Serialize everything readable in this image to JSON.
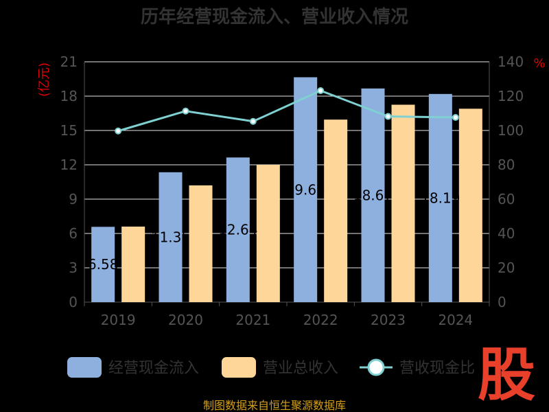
{
  "chart_data": {
    "type": "bar",
    "title": "历年经营现金流入、营业收入情况",
    "categories": [
      "2019",
      "2020",
      "2021",
      "2022",
      "2023",
      "2024"
    ],
    "series": [
      {
        "name": "经营现金流入",
        "type": "bar",
        "axis": "left",
        "color": "#8eb0df",
        "values": [
          6.58,
          11.35,
          12.64,
          19.65,
          18.67,
          18.19
        ]
      },
      {
        "name": "营业总收入",
        "type": "bar",
        "axis": "left",
        "color": "#ffd699",
        "values": [
          6.6,
          10.2,
          12.0,
          15.95,
          17.25,
          16.9
        ]
      },
      {
        "name": "营收现金比",
        "type": "line",
        "axis": "right",
        "color": "#7fd1d1",
        "values": [
          99.7,
          111.3,
          105.3,
          123.2,
          108.2,
          107.6
        ]
      }
    ],
    "data_labels": [
      "6.58",
      "11.35",
      "12.64",
      "19.65",
      "18.67",
      "18.19"
    ],
    "y_left": {
      "label": "(亿元)",
      "ylim": [
        0,
        21
      ],
      "ticks": [
        "0",
        "3",
        "6",
        "9",
        "12",
        "15",
        "18",
        "21"
      ]
    },
    "y_right": {
      "label": "%",
      "ylim": [
        0,
        140
      ],
      "ticks": [
        "0",
        "20",
        "40",
        "60",
        "80",
        "100",
        "120",
        "140"
      ]
    },
    "grid": true,
    "legend_position": "bottom"
  },
  "source": "制图数据来自恒生聚源数据库",
  "logo_text": "股"
}
